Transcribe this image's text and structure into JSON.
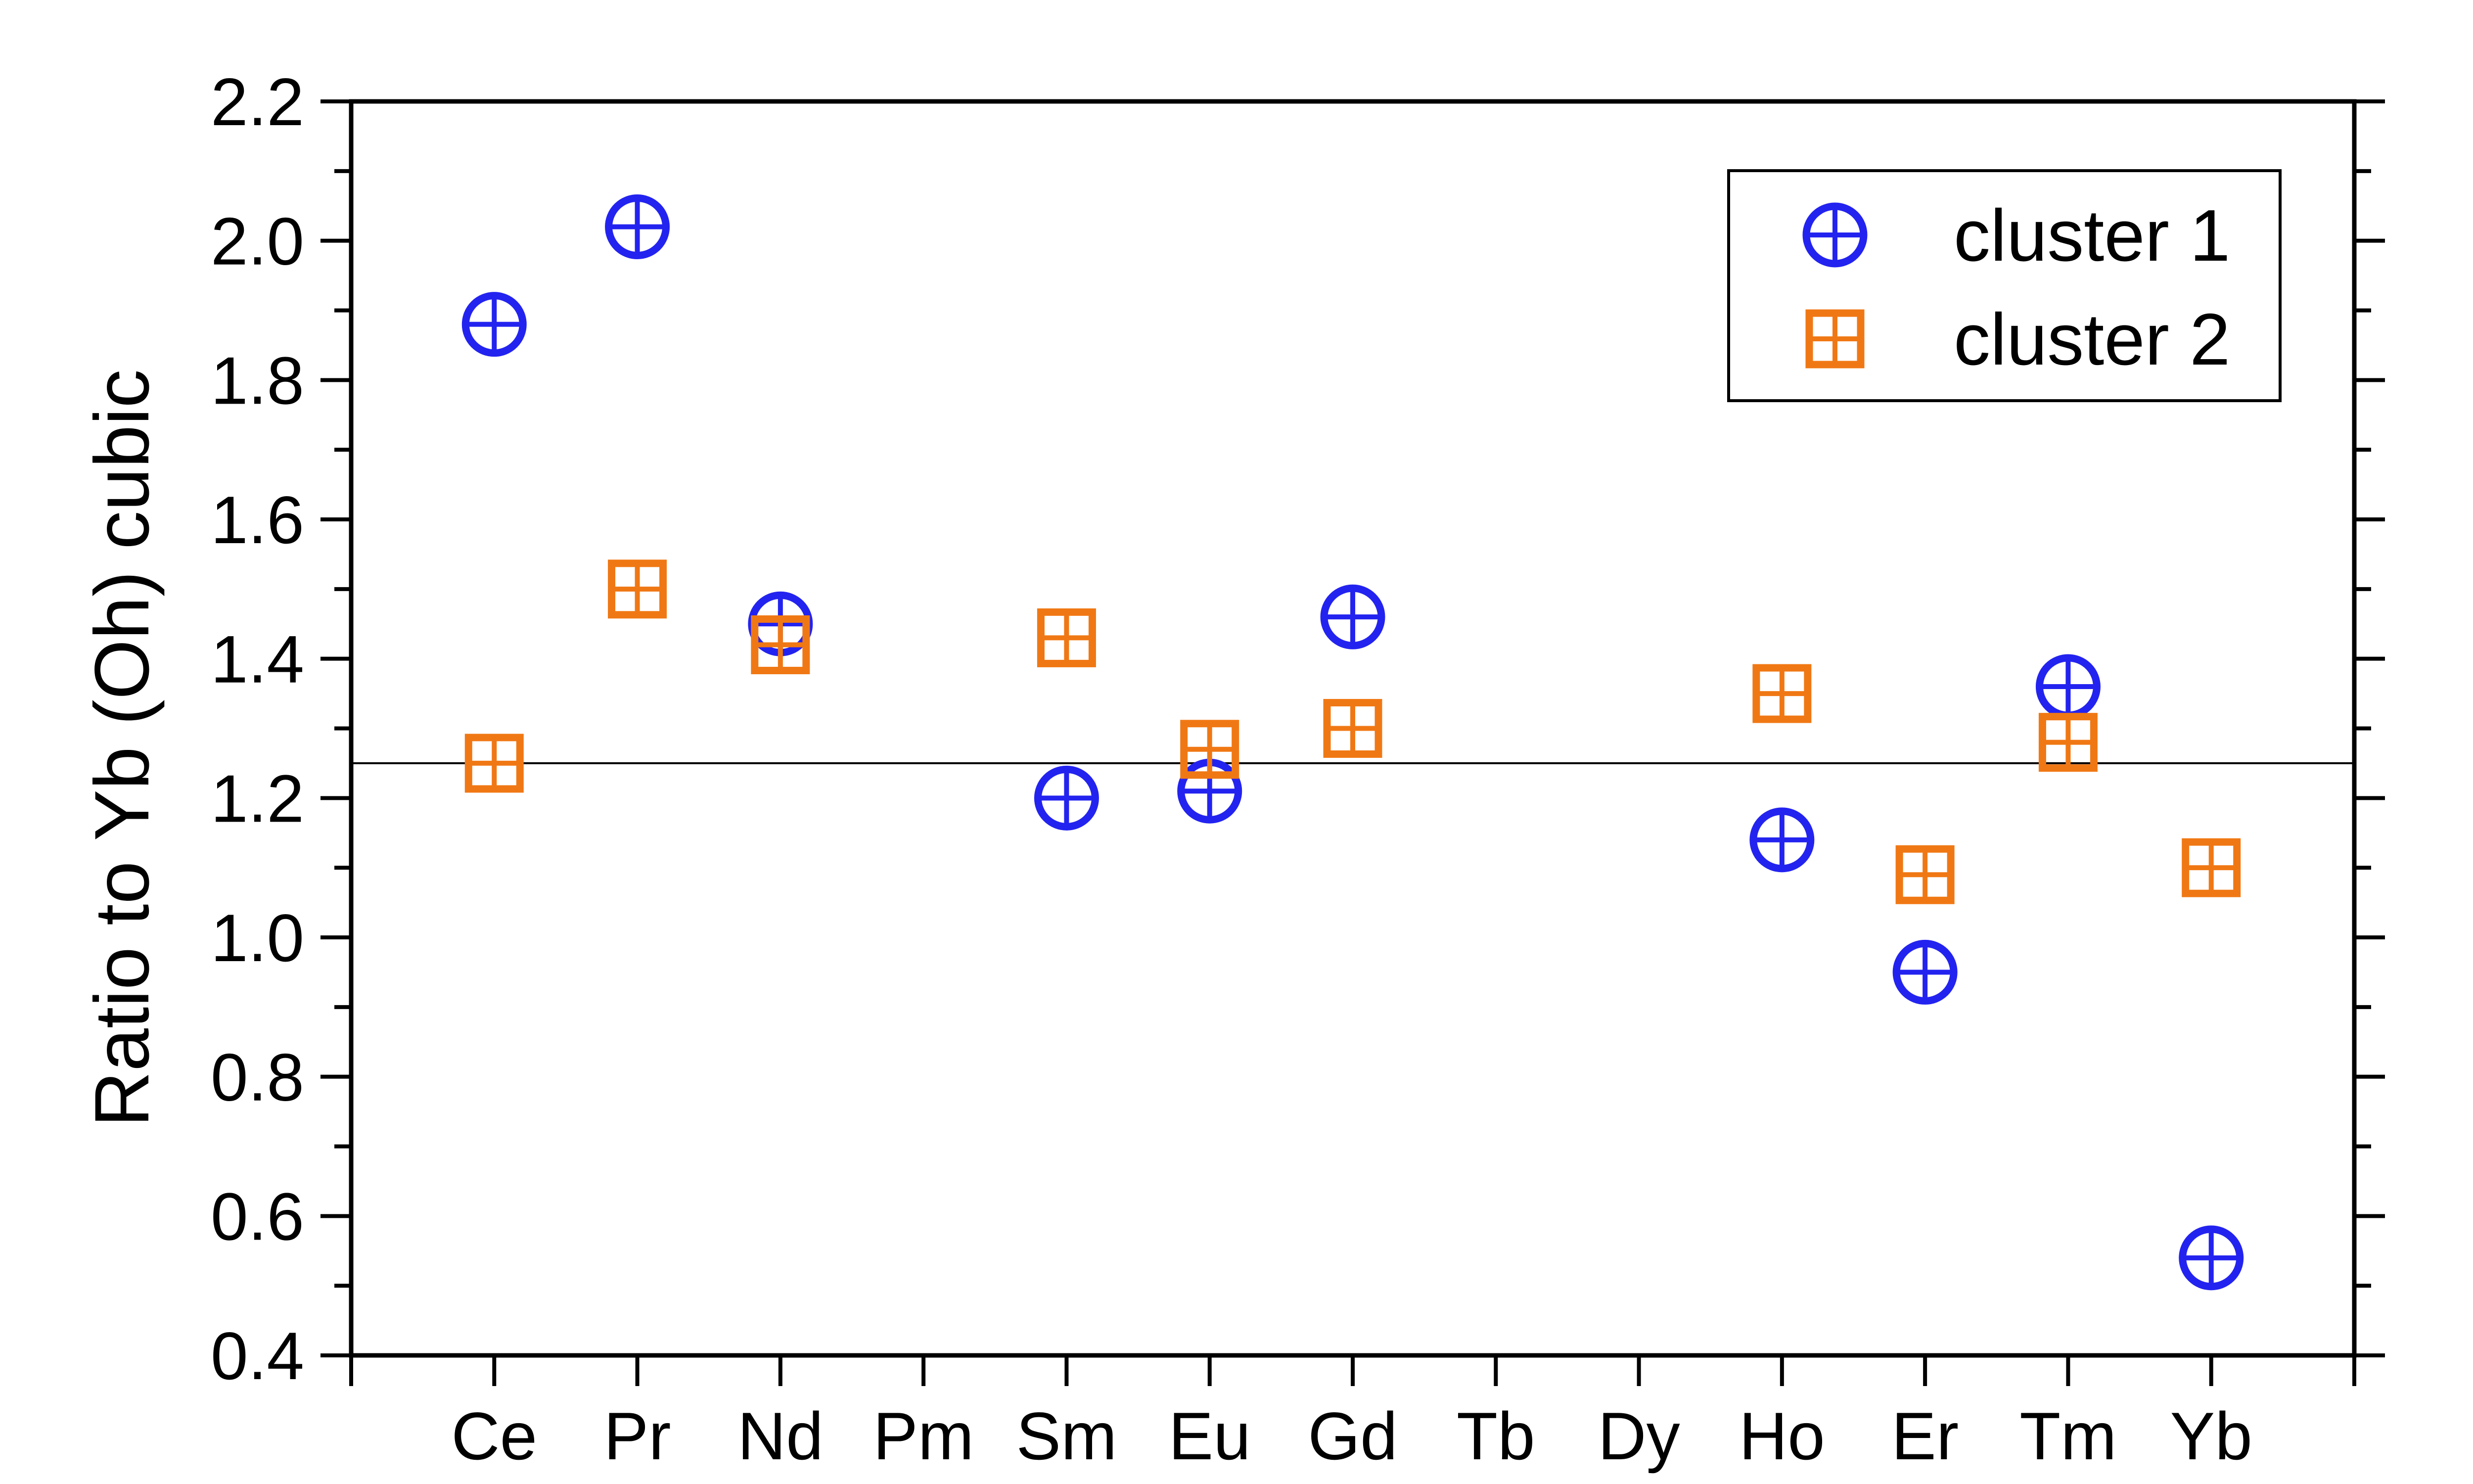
{
  "chart_data": {
    "type": "scatter",
    "title": "",
    "xlabel": "",
    "ylabel": "Ratio to Yb (Oh) cubic",
    "categories": [
      "Ce",
      "Pr",
      "Nd",
      "Pm",
      "Sm",
      "Eu",
      "Gd",
      "Tb",
      "Dy",
      "Ho",
      "Er",
      "Tm",
      "Yb"
    ],
    "ylim": [
      0.4,
      2.2
    ],
    "yticks": [
      "0.4",
      "0.6",
      "0.8",
      "1.0",
      "1.2",
      "1.4",
      "1.6",
      "1.8",
      "2.0",
      "2.2"
    ],
    "reference_line": 1.25,
    "legend_position": "top-right",
    "grid": false,
    "series": [
      {
        "name": "cluster 1",
        "marker": "circle-plus",
        "color": "#2323f0",
        "values": [
          1.88,
          2.02,
          1.45,
          null,
          1.2,
          1.21,
          1.46,
          null,
          null,
          1.14,
          0.95,
          1.36,
          0.54
        ]
      },
      {
        "name": "cluster 2",
        "marker": "square-plus",
        "color": "#f07814",
        "values": [
          1.25,
          1.5,
          1.42,
          null,
          1.43,
          1.27,
          1.3,
          null,
          null,
          1.35,
          1.09,
          1.28,
          1.1
        ]
      }
    ]
  }
}
